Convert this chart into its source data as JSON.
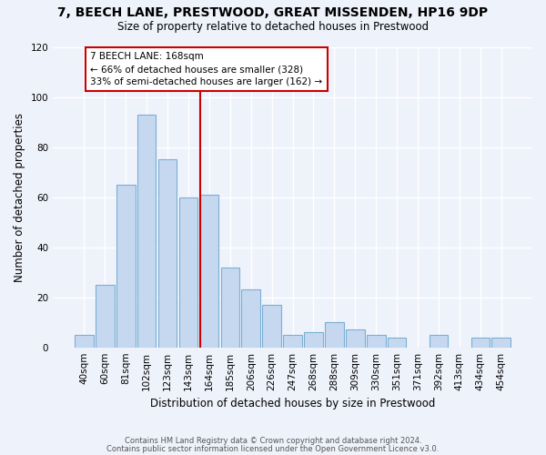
{
  "title": "7, BEECH LANE, PRESTWOOD, GREAT MISSENDEN, HP16 9DP",
  "subtitle": "Size of property relative to detached houses in Prestwood",
  "xlabel": "Distribution of detached houses by size in Prestwood",
  "ylabel": "Number of detached properties",
  "categories": [
    "40sqm",
    "60sqm",
    "81sqm",
    "102sqm",
    "123sqm",
    "143sqm",
    "164sqm",
    "185sqm",
    "206sqm",
    "226sqm",
    "247sqm",
    "268sqm",
    "288sqm",
    "309sqm",
    "330sqm",
    "351sqm",
    "371sqm",
    "392sqm",
    "413sqm",
    "434sqm",
    "454sqm"
  ],
  "values": [
    5,
    25,
    65,
    93,
    75,
    60,
    61,
    32,
    23,
    17,
    5,
    6,
    10,
    7,
    5,
    4,
    0,
    5,
    0,
    4,
    4
  ],
  "bar_color": "#c5d8f0",
  "bar_edge_color": "#7bafd4",
  "highlight_line_index": 6,
  "annotation_title": "7 BEECH LANE: 168sqm",
  "annotation_line1": "← 66% of detached houses are smaller (328)",
  "annotation_line2": "33% of semi-detached houses are larger (162) →",
  "annotation_box_color": "#cc0000",
  "ylim": [
    0,
    120
  ],
  "yticks": [
    0,
    20,
    40,
    60,
    80,
    100,
    120
  ],
  "background_color": "#eef2fb",
  "grid_color": "#ffffff",
  "footer_line1": "Contains HM Land Registry data © Crown copyright and database right 2024.",
  "footer_line2": "Contains public sector information licensed under the Open Government Licence v3.0."
}
